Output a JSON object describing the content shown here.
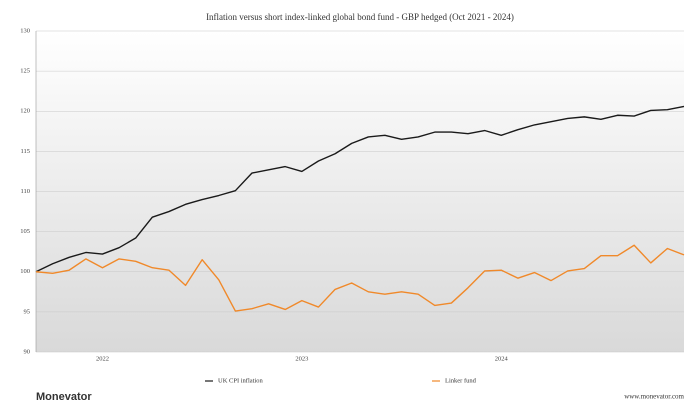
{
  "chart_data": {
    "type": "line",
    "title": "Inflation versus short index-linked global bond fund - GBP hedged (Oct 2021 - 2024)",
    "categories": [
      null,
      null,
      null,
      null,
      "2022",
      null,
      null,
      null,
      null,
      null,
      null,
      null,
      null,
      null,
      null,
      null,
      "2023",
      null,
      null,
      null,
      null,
      null,
      null,
      null,
      null,
      null,
      null,
      null,
      "2024",
      null,
      null,
      null,
      null,
      null,
      null,
      null,
      null,
      null,
      null,
      null
    ],
    "series": [
      {
        "name": "UK CPI inflation",
        "color": "#1a1a1a",
        "values": [
          100,
          101,
          101.8,
          102.4,
          102.2,
          103,
          104.2,
          106.8,
          107.5,
          108.4,
          109,
          109.5,
          110.1,
          112.3,
          112.7,
          113.1,
          112.5,
          113.8,
          114.7,
          116,
          116.8,
          117,
          116.5,
          116.8,
          117.4,
          117.4,
          117.2,
          117.6,
          117,
          117.7,
          118.3,
          118.7,
          119.1,
          119.3,
          119,
          119.5,
          119.4,
          120.1,
          120.2,
          120.6
        ]
      },
      {
        "name": "Linker fund",
        "color": "#f0892a",
        "values": [
          100,
          99.8,
          100.2,
          101.6,
          100.5,
          101.6,
          101.3,
          100.5,
          100.2,
          98.3,
          101.5,
          99,
          95.1,
          95.4,
          96,
          95.3,
          96.4,
          95.6,
          97.8,
          98.6,
          97.5,
          97.2,
          97.5,
          97.2,
          95.8,
          96.1,
          98,
          100.1,
          100.2,
          99.2,
          99.9,
          98.9,
          100.1,
          100.4,
          102,
          102,
          103.3,
          101.1,
          102.9,
          102.1
        ]
      }
    ],
    "ylim": [
      90,
      130
    ],
    "yticks": [
      90,
      95,
      100,
      105,
      110,
      115,
      120,
      125,
      130
    ],
    "grid": true,
    "legend": "bottom"
  },
  "footer": {
    "brand": "Monevator",
    "url": "www.monevator.com"
  }
}
